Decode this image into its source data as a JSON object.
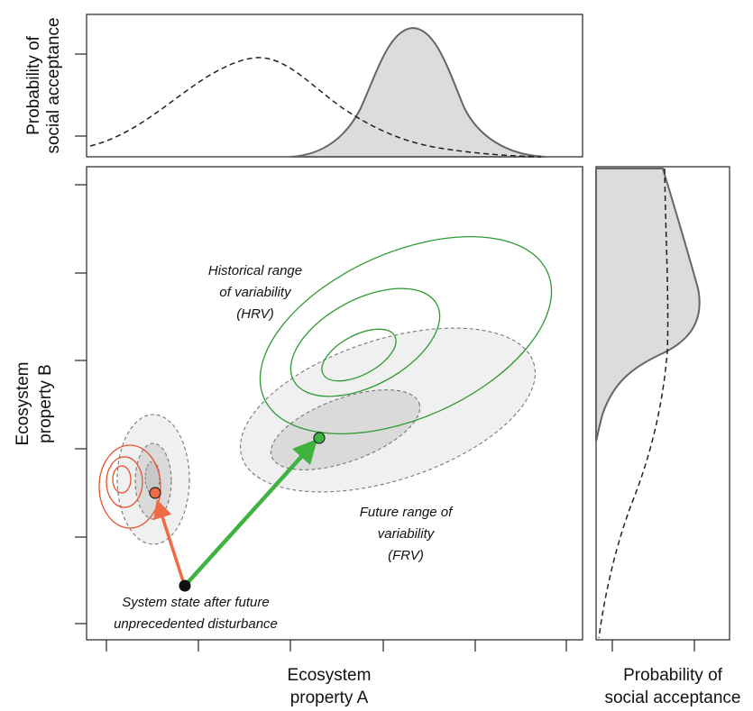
{
  "top_panel": {
    "ylabel_line1": "Probability of",
    "ylabel_line2": "social acceptance"
  },
  "main_panel": {
    "xlabel_line1": "Ecosystem",
    "xlabel_line2": "property A",
    "ylabel_line1": "Ecosystem",
    "ylabel_line2": "property B"
  },
  "right_panel": {
    "xlabel_line1": "Probability of",
    "xlabel_line2": "social acceptance"
  },
  "annotations": {
    "hrv": [
      "Historical range",
      "of variability",
      "(HRV)"
    ],
    "frv": [
      "Future range of",
      "variability",
      "(FRV)"
    ],
    "state": [
      "System state after future",
      "unprecedented disturbance"
    ]
  },
  "colors": {
    "hrv_contour": "#2e9a2e",
    "small_hrv_contour": "#e8502a",
    "frv_fill_outer": "#f0f0f0",
    "frv_fill_inner": "#dadada",
    "arrow_green": "#3fb23f",
    "arrow_orange": "#ef6a45",
    "density_fill": "#dcdcdc",
    "density_line": "#666666"
  }
}
